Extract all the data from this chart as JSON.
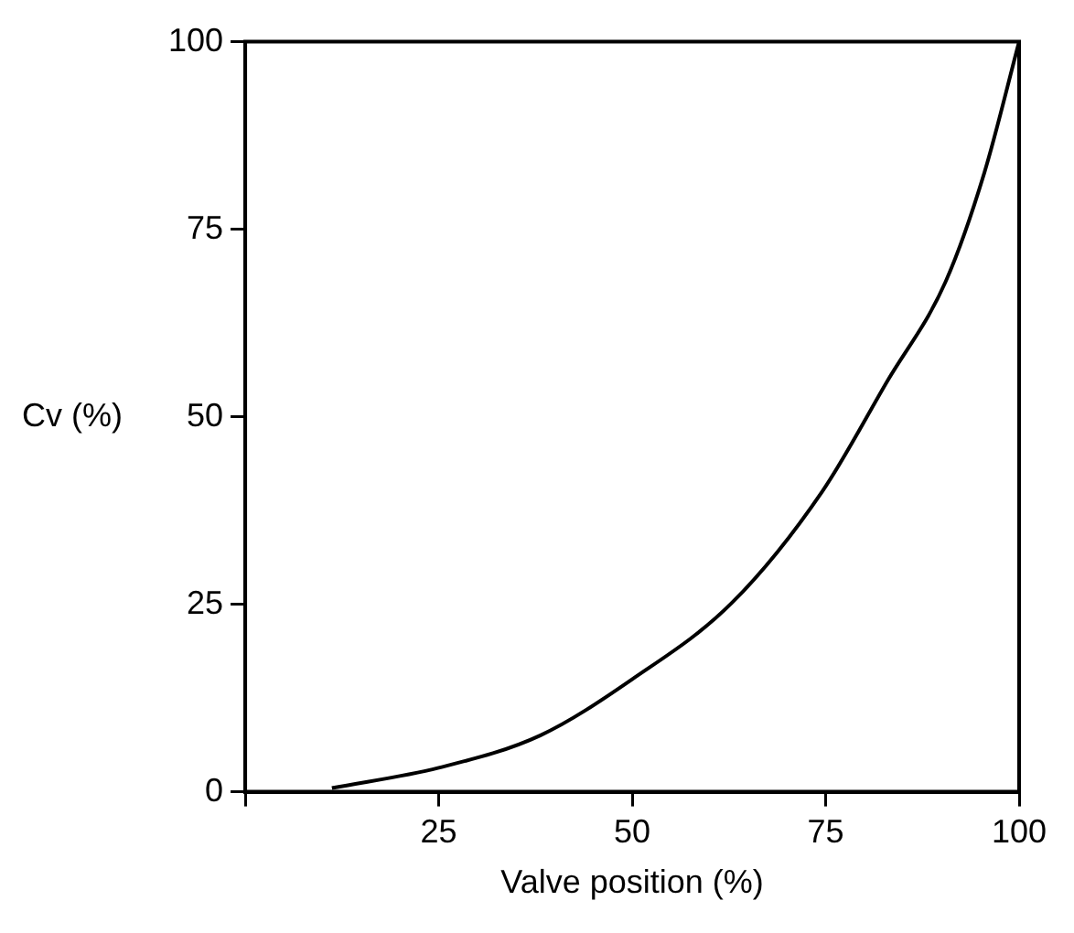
{
  "chart_data": {
    "type": "line",
    "xlabel": "Valve position (%)",
    "ylabel": "Cv (%)",
    "x": [
      11.2,
      25,
      38.1,
      50,
      62.9,
      74.6,
      83,
      90.5,
      95.5,
      100
    ],
    "series": [
      {
        "color": "#000000",
        "values": [
          0.5,
          3.2,
          7.5,
          15,
          25.2,
          40.1,
          54.8,
          68,
          82.5,
          100
        ]
      }
    ],
    "xlim": [
      0,
      100
    ],
    "ylim": [
      0,
      100
    ],
    "xticks": [
      {
        "value": 0,
        "label": null
      },
      25,
      50,
      75,
      100
    ],
    "yticks": [
      0,
      25,
      50,
      75,
      100
    ],
    "grid": false,
    "legend": false,
    "marker": "none",
    "line_style": "solid"
  }
}
